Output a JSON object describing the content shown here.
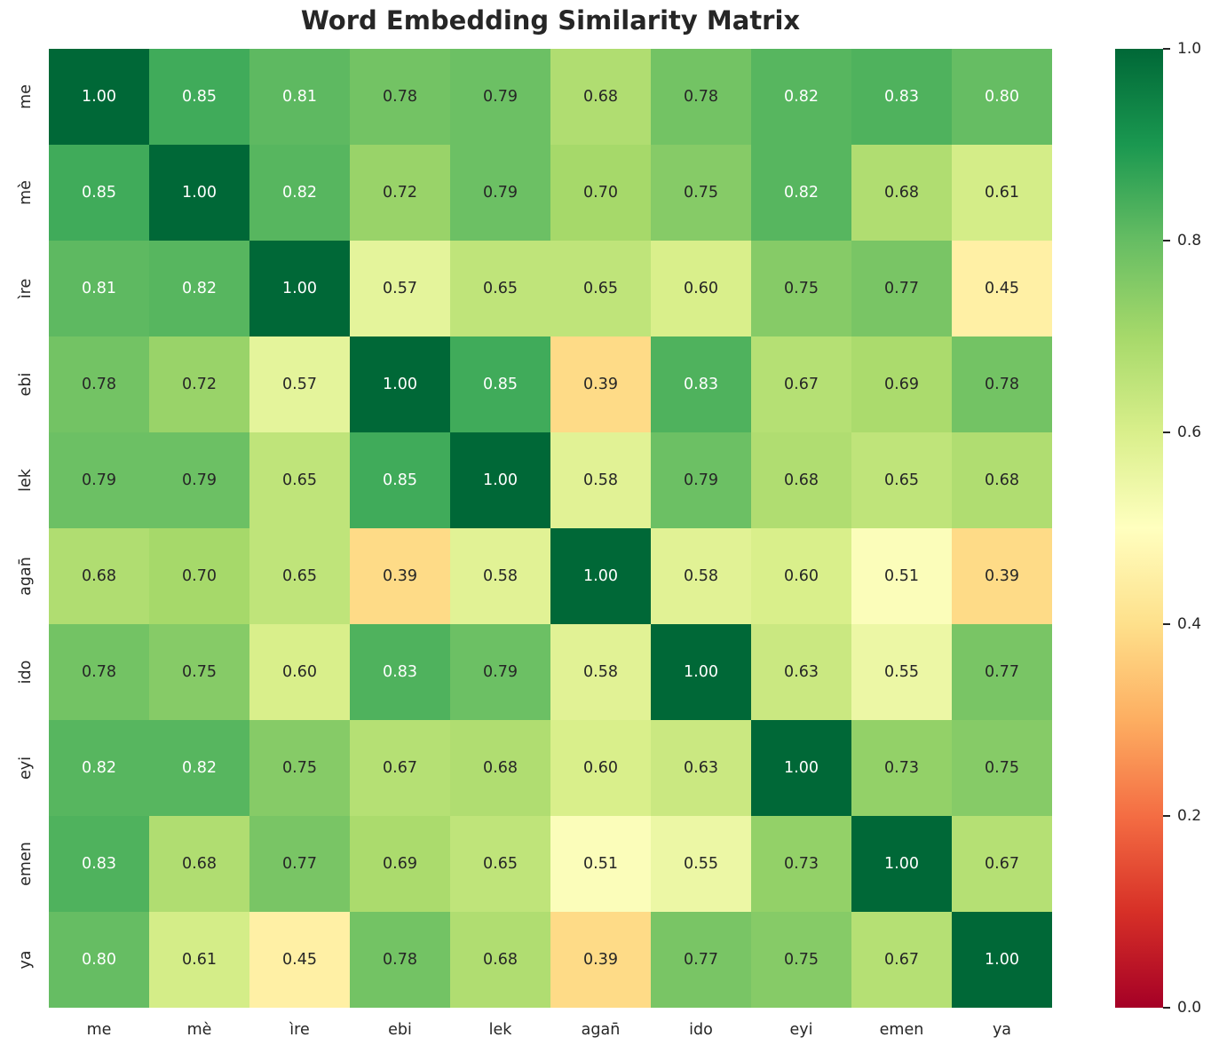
{
  "chart_data": {
    "type": "heatmap",
    "title": "Word Embedding Similarity Matrix",
    "labels": [
      "me",
      "mè",
      "ìre",
      "ebi",
      "lek",
      "agan̄",
      "ido",
      "eyi",
      "emen",
      "ya"
    ],
    "matrix": [
      [
        1.0,
        0.85,
        0.81,
        0.78,
        0.79,
        0.68,
        0.78,
        0.82,
        0.83,
        0.8
      ],
      [
        0.85,
        1.0,
        0.82,
        0.72,
        0.79,
        0.7,
        0.75,
        0.82,
        0.68,
        0.61
      ],
      [
        0.81,
        0.82,
        1.0,
        0.57,
        0.65,
        0.65,
        0.6,
        0.75,
        0.77,
        0.45
      ],
      [
        0.78,
        0.72,
        0.57,
        1.0,
        0.85,
        0.39,
        0.83,
        0.67,
        0.69,
        0.78
      ],
      [
        0.79,
        0.79,
        0.65,
        0.85,
        1.0,
        0.58,
        0.79,
        0.68,
        0.65,
        0.68
      ],
      [
        0.68,
        0.7,
        0.65,
        0.39,
        0.58,
        1.0,
        0.58,
        0.6,
        0.51,
        0.39
      ],
      [
        0.78,
        0.75,
        0.6,
        0.83,
        0.79,
        0.58,
        1.0,
        0.63,
        0.55,
        0.77
      ],
      [
        0.82,
        0.82,
        0.75,
        0.67,
        0.68,
        0.6,
        0.63,
        1.0,
        0.73,
        0.75
      ],
      [
        0.83,
        0.68,
        0.77,
        0.69,
        0.65,
        0.51,
        0.55,
        0.73,
        1.0,
        0.67
      ],
      [
        0.8,
        0.61,
        0.45,
        0.78,
        0.68,
        0.39,
        0.77,
        0.75,
        0.67,
        1.0
      ]
    ],
    "value_decimals": 2,
    "vmin": 0.0,
    "vmax": 1.0,
    "grid": false,
    "colormap": {
      "name": "RdYlGn",
      "anchors": [
        [
          0.0,
          "#a50026"
        ],
        [
          0.1,
          "#d73027"
        ],
        [
          0.2,
          "#f46d43"
        ],
        [
          0.3,
          "#fdae61"
        ],
        [
          0.4,
          "#fee08b"
        ],
        [
          0.5,
          "#ffffbf"
        ],
        [
          0.6,
          "#d9ef8b"
        ],
        [
          0.7,
          "#a6d96a"
        ],
        [
          0.8,
          "#66bd63"
        ],
        [
          0.9,
          "#1a9850"
        ],
        [
          1.0,
          "#006837"
        ]
      ]
    },
    "annotation_text": {
      "light_color": "#ffffff",
      "dark_color": "#262626",
      "light_threshold": 0.795
    },
    "colorbar": {
      "position": "right",
      "ticks": [
        {
          "v": 1.0,
          "label": "1.0"
        },
        {
          "v": 0.8,
          "label": "0.8"
        },
        {
          "v": 0.6,
          "label": "0.6"
        },
        {
          "v": 0.4,
          "label": "0.4"
        },
        {
          "v": 0.2,
          "label": "0.2"
        },
        {
          "v": 0.0,
          "label": "0.0"
        }
      ]
    },
    "title_color": "#262626",
    "tick_label_color": "#262626"
  }
}
